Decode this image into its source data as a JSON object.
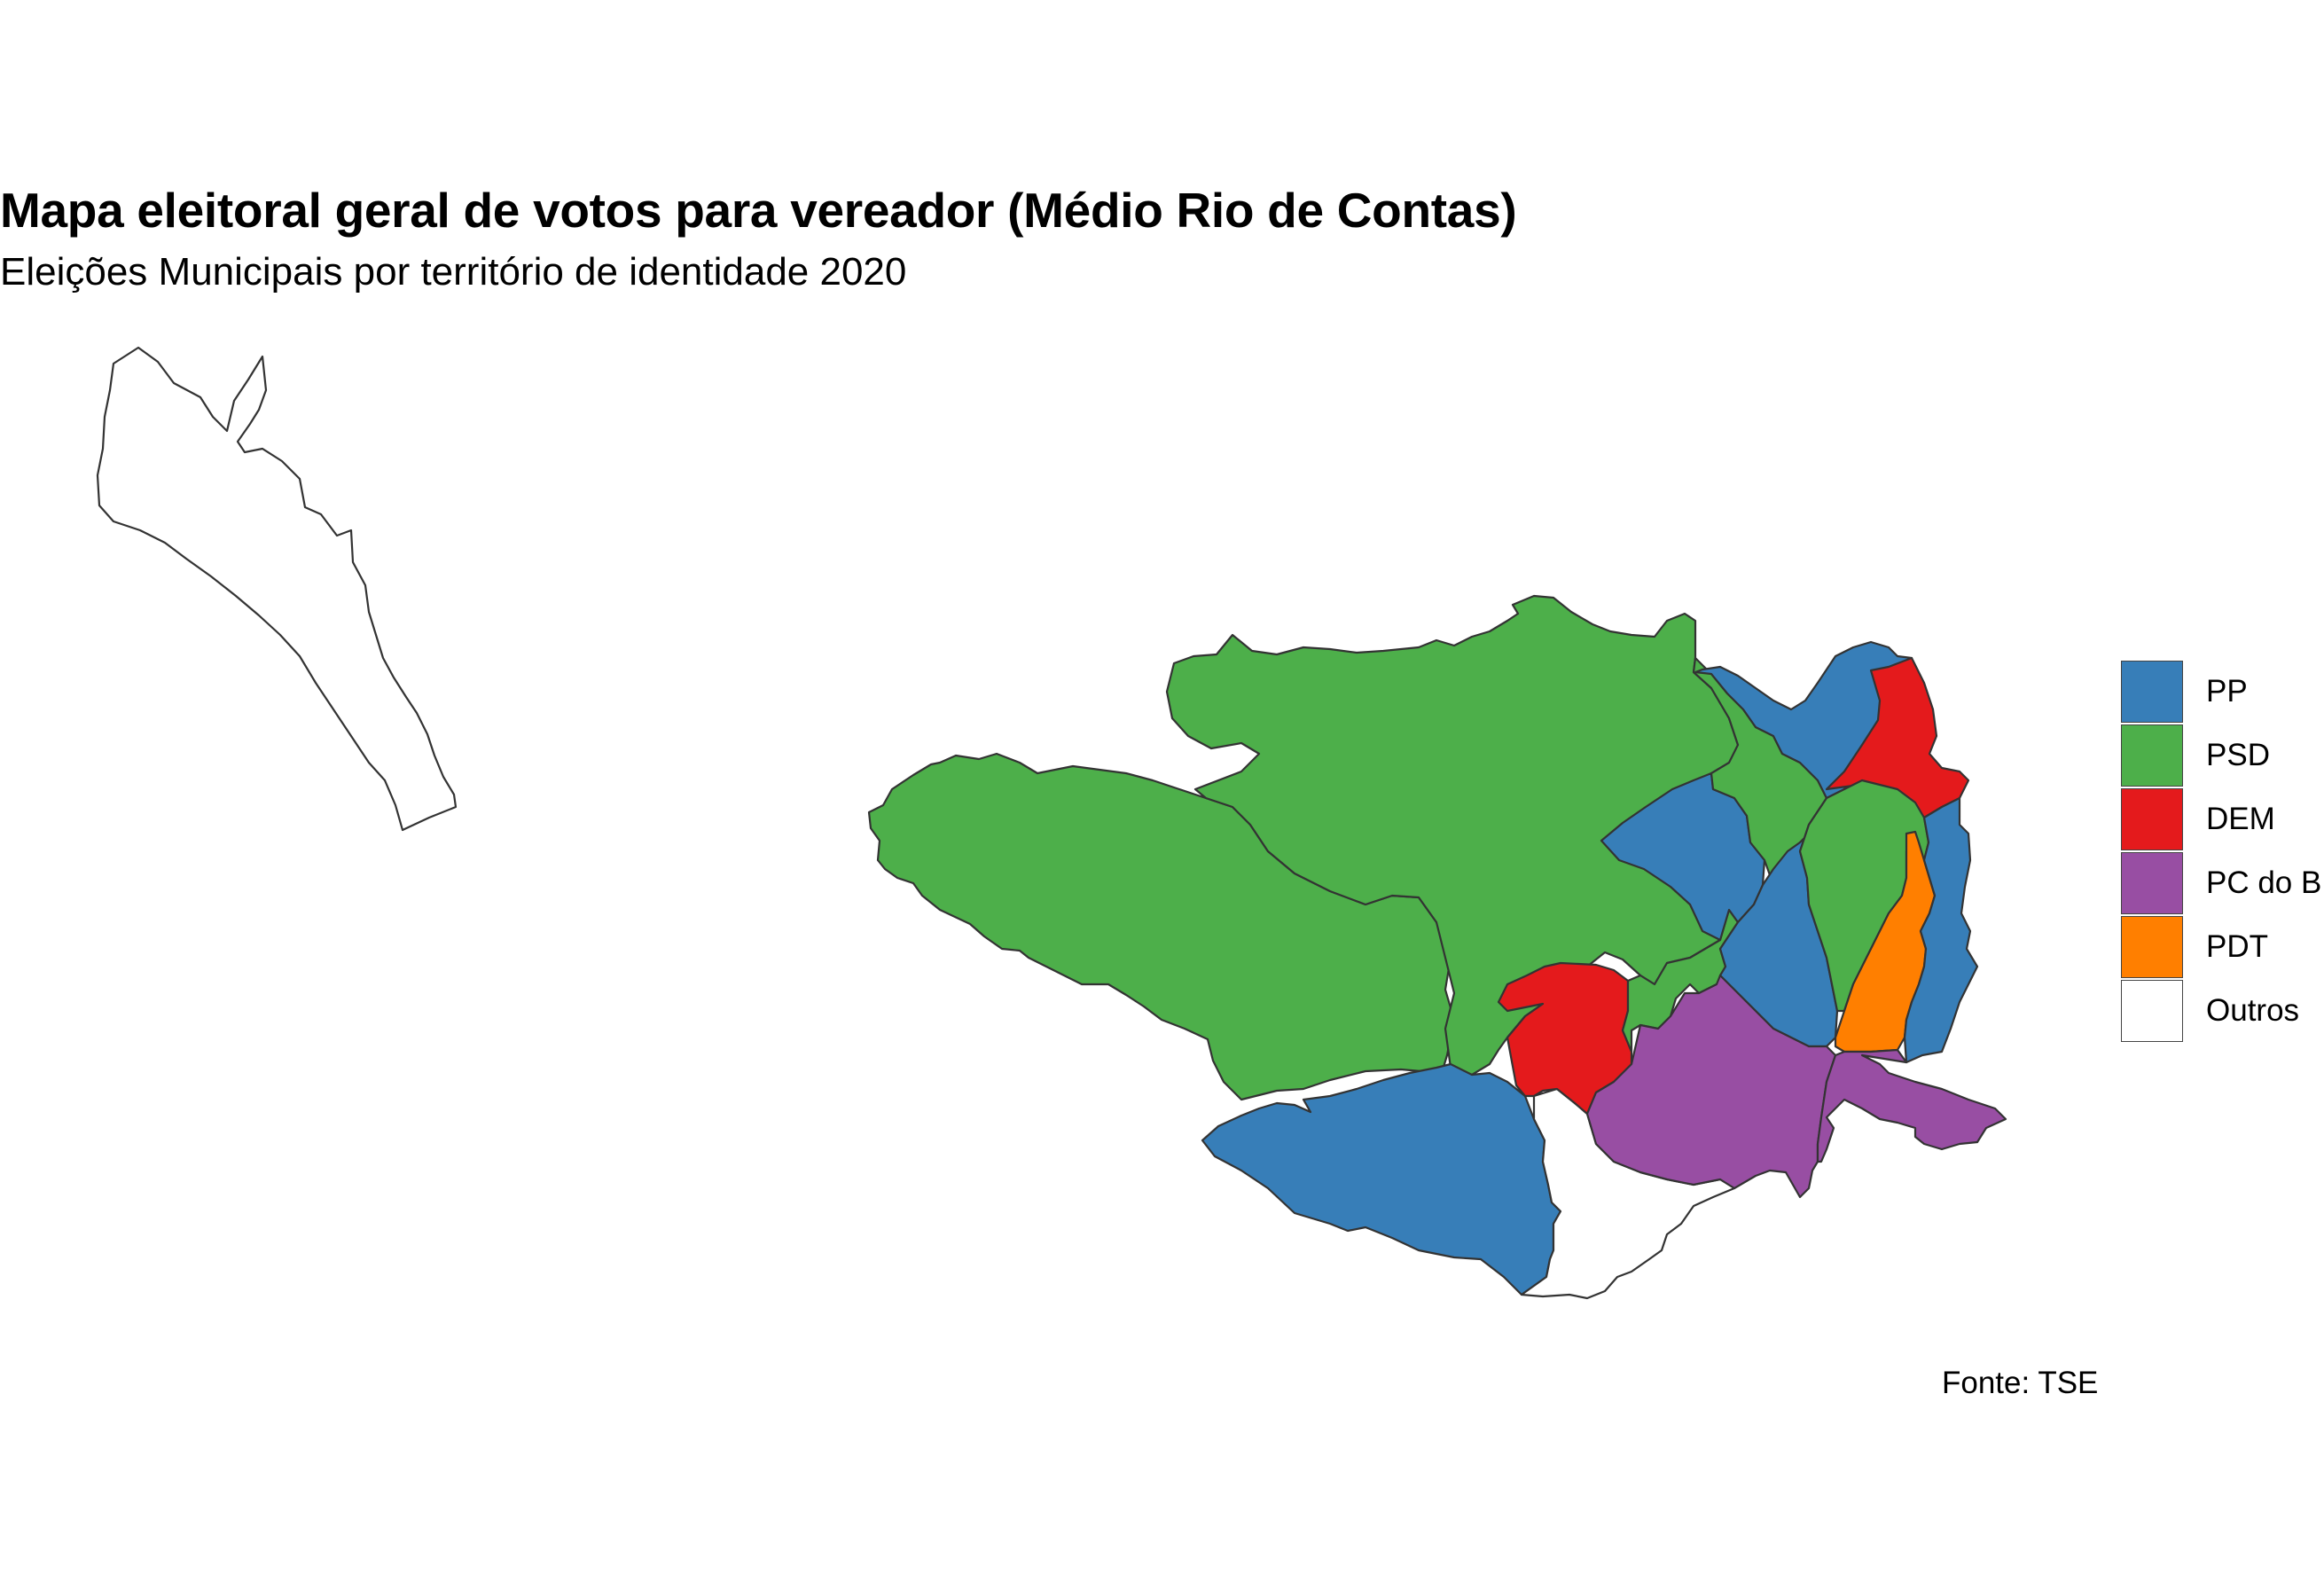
{
  "title": "Mapa eleitoral geral de votos para vereador (Médio Rio de Contas)",
  "subtitle": "Eleições Municipais por território de identidade 2020",
  "caption": "Fonte: TSE",
  "colors": {
    "PP": "#377EB8",
    "PSD": "#4DAF4A",
    "DEM": "#E41A1C",
    "PC do B": "#984EA3",
    "PDT": "#FF7F00",
    "Outros": "#FFFFFF"
  },
  "legend": [
    {
      "label": "PP",
      "color": "#377EB8"
    },
    {
      "label": "PSD",
      "color": "#4DAF4A"
    },
    {
      "label": "DEM",
      "color": "#E41A1C"
    },
    {
      "label": "PC do B",
      "color": "#984EA3"
    },
    {
      "label": "PDT",
      "color": "#FF7F00"
    },
    {
      "label": "Outros",
      "color": "#FFFFFF"
    }
  ],
  "regions": [
    {
      "id": "outlier-northwest",
      "party": "Outros"
    },
    {
      "id": "west-large",
      "party": "PSD"
    },
    {
      "id": "north-central",
      "party": "PSD"
    },
    {
      "id": "south-west-blue",
      "party": "PP"
    },
    {
      "id": "south-white",
      "party": "Outros"
    },
    {
      "id": "central-red",
      "party": "DEM"
    },
    {
      "id": "central-green-small",
      "party": "PSD"
    },
    {
      "id": "central-blue",
      "party": "PP"
    },
    {
      "id": "north-green-strip",
      "party": "PSD"
    },
    {
      "id": "north-blue",
      "party": "PP"
    },
    {
      "id": "northeast-red",
      "party": "DEM"
    },
    {
      "id": "east-central-blue",
      "party": "PP"
    },
    {
      "id": "east-green",
      "party": "PSD"
    },
    {
      "id": "east-orange",
      "party": "PDT"
    },
    {
      "id": "far-east-blue",
      "party": "PP"
    },
    {
      "id": "south-purple",
      "party": "PC do B"
    },
    {
      "id": "southeast-purple",
      "party": "PC do B"
    }
  ]
}
